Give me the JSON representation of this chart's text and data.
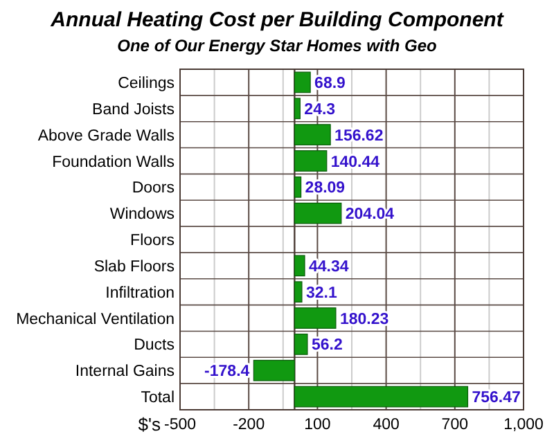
{
  "chart_data": {
    "type": "bar",
    "orientation": "horizontal",
    "title": "Annual Heating Cost per Building Component",
    "subtitle": "One of Our Energy Star Homes with Geo",
    "xlabel": "$'s",
    "categories": [
      "Ceilings",
      "Band Joists",
      "Above Grade Walls",
      "Foundation Walls",
      "Doors",
      "Windows",
      "Floors",
      "Slab Floors",
      "Infiltration",
      "Mechanical Ventilation",
      "Ducts",
      "Internal Gains",
      "Total"
    ],
    "values": [
      68.9,
      24.3,
      156.62,
      140.44,
      28.09,
      204.04,
      null,
      44.34,
      32.1,
      180.23,
      56.2,
      -178.4,
      756.47
    ],
    "color": "#119911",
    "data_labels": true,
    "xlim": [
      -500,
      1000
    ],
    "xticks": [
      -500,
      {
        "value": -350,
        "label": null
      },
      -200,
      {
        "value": -50,
        "label": null
      },
      100,
      {
        "value": 250,
        "label": null
      },
      400,
      {
        "value": 550,
        "label": null
      },
      700,
      {
        "value": 850,
        "label": null
      },
      {
        "value": 1000,
        "label": "1,000"
      }
    ],
    "grid": true
  }
}
